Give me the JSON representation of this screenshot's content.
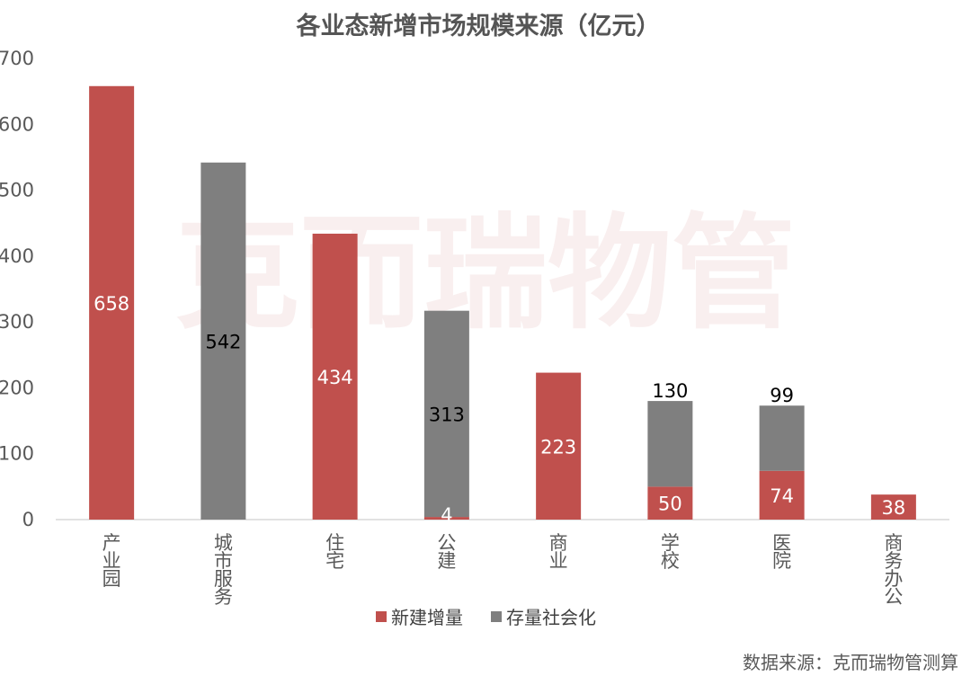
{
  "chart_data": {
    "type": "bar",
    "stacked": true,
    "title": "各业态新增市场规模来源（亿元）",
    "categories": [
      "产业园",
      "城市服务",
      "住宅",
      "公建",
      "商业",
      "学校",
      "医院",
      "商务办公"
    ],
    "series": [
      {
        "name": "新建增量",
        "color": "#c0504d",
        "values": [
          658,
          0,
          434,
          4,
          223,
          50,
          74,
          38
        ]
      },
      {
        "name": "存量社会化",
        "color": "#7f7f7f",
        "values": [
          0,
          542,
          0,
          313,
          0,
          130,
          99,
          0
        ]
      }
    ],
    "yticks": [
      "0",
      "100",
      "200",
      "300",
      "400",
      "500",
      "600",
      "700"
    ],
    "ylim": [
      0,
      700
    ],
    "grid": false,
    "legend_position": "bottom"
  },
  "watermark": "克而瑞物管",
  "source_note": "数据来源：克而瑞物管测算",
  "colors": {
    "label_on_red": "#ffffff",
    "label_dark": "#000000"
  }
}
